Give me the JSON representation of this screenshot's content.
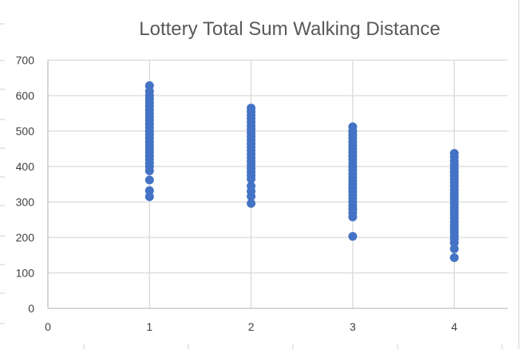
{
  "chart_data": {
    "type": "scatter",
    "title": "Lottery Total Sum Walking Distance",
    "xlabel": "",
    "ylabel": "",
    "xlim": [
      0,
      4.55
    ],
    "ylim": [
      0,
      700
    ],
    "xticks": [
      0,
      1,
      2,
      3,
      4
    ],
    "yticks": [
      0,
      100,
      200,
      300,
      400,
      500,
      600,
      700
    ],
    "grid": "both",
    "legend": "none",
    "marker_color": "#4472C4",
    "series": [
      {
        "values": [
          {
            "x": 1,
            "y": 315
          },
          {
            "x": 1,
            "y": 332
          },
          {
            "x": 1,
            "y": 362
          },
          {
            "x": 1,
            "y": 388
          },
          {
            "x": 1,
            "y": 400
          },
          {
            "x": 1,
            "y": 410
          },
          {
            "x": 1,
            "y": 420
          },
          {
            "x": 1,
            "y": 430
          },
          {
            "x": 1,
            "y": 440
          },
          {
            "x": 1,
            "y": 450
          },
          {
            "x": 1,
            "y": 460
          },
          {
            "x": 1,
            "y": 470
          },
          {
            "x": 1,
            "y": 480
          },
          {
            "x": 1,
            "y": 490
          },
          {
            "x": 1,
            "y": 500
          },
          {
            "x": 1,
            "y": 510
          },
          {
            "x": 1,
            "y": 520
          },
          {
            "x": 1,
            "y": 530
          },
          {
            "x": 1,
            "y": 540
          },
          {
            "x": 1,
            "y": 550
          },
          {
            "x": 1,
            "y": 560
          },
          {
            "x": 1,
            "y": 570
          },
          {
            "x": 1,
            "y": 580
          },
          {
            "x": 1,
            "y": 590
          },
          {
            "x": 1,
            "y": 600
          },
          {
            "x": 1,
            "y": 612
          },
          {
            "x": 1,
            "y": 628
          },
          {
            "x": 2,
            "y": 296
          },
          {
            "x": 2,
            "y": 316
          },
          {
            "x": 2,
            "y": 330
          },
          {
            "x": 2,
            "y": 345
          },
          {
            "x": 2,
            "y": 365
          },
          {
            "x": 2,
            "y": 375
          },
          {
            "x": 2,
            "y": 385
          },
          {
            "x": 2,
            "y": 395
          },
          {
            "x": 2,
            "y": 405
          },
          {
            "x": 2,
            "y": 415
          },
          {
            "x": 2,
            "y": 425
          },
          {
            "x": 2,
            "y": 435
          },
          {
            "x": 2,
            "y": 445
          },
          {
            "x": 2,
            "y": 455
          },
          {
            "x": 2,
            "y": 465
          },
          {
            "x": 2,
            "y": 475
          },
          {
            "x": 2,
            "y": 485
          },
          {
            "x": 2,
            "y": 495
          },
          {
            "x": 2,
            "y": 505
          },
          {
            "x": 2,
            "y": 515
          },
          {
            "x": 2,
            "y": 525
          },
          {
            "x": 2,
            "y": 535
          },
          {
            "x": 2,
            "y": 545
          },
          {
            "x": 2,
            "y": 555
          },
          {
            "x": 2,
            "y": 565
          },
          {
            "x": 3,
            "y": 203
          },
          {
            "x": 3,
            "y": 258
          },
          {
            "x": 3,
            "y": 270
          },
          {
            "x": 3,
            "y": 280
          },
          {
            "x": 3,
            "y": 290
          },
          {
            "x": 3,
            "y": 300
          },
          {
            "x": 3,
            "y": 310
          },
          {
            "x": 3,
            "y": 320
          },
          {
            "x": 3,
            "y": 330
          },
          {
            "x": 3,
            "y": 340
          },
          {
            "x": 3,
            "y": 350
          },
          {
            "x": 3,
            "y": 360
          },
          {
            "x": 3,
            "y": 370
          },
          {
            "x": 3,
            "y": 380
          },
          {
            "x": 3,
            "y": 390
          },
          {
            "x": 3,
            "y": 400
          },
          {
            "x": 3,
            "y": 410
          },
          {
            "x": 3,
            "y": 420
          },
          {
            "x": 3,
            "y": 430
          },
          {
            "x": 3,
            "y": 440
          },
          {
            "x": 3,
            "y": 450
          },
          {
            "x": 3,
            "y": 460
          },
          {
            "x": 3,
            "y": 470
          },
          {
            "x": 3,
            "y": 480
          },
          {
            "x": 3,
            "y": 490
          },
          {
            "x": 3,
            "y": 500
          },
          {
            "x": 3,
            "y": 512
          },
          {
            "x": 4,
            "y": 143
          },
          {
            "x": 4,
            "y": 168
          },
          {
            "x": 4,
            "y": 185
          },
          {
            "x": 4,
            "y": 195
          },
          {
            "x": 4,
            "y": 205
          },
          {
            "x": 4,
            "y": 215
          },
          {
            "x": 4,
            "y": 225
          },
          {
            "x": 4,
            "y": 235
          },
          {
            "x": 4,
            "y": 245
          },
          {
            "x": 4,
            "y": 255
          },
          {
            "x": 4,
            "y": 265
          },
          {
            "x": 4,
            "y": 275
          },
          {
            "x": 4,
            "y": 285
          },
          {
            "x": 4,
            "y": 295
          },
          {
            "x": 4,
            "y": 305
          },
          {
            "x": 4,
            "y": 315
          },
          {
            "x": 4,
            "y": 325
          },
          {
            "x": 4,
            "y": 335
          },
          {
            "x": 4,
            "y": 345
          },
          {
            "x": 4,
            "y": 355
          },
          {
            "x": 4,
            "y": 365
          },
          {
            "x": 4,
            "y": 375
          },
          {
            "x": 4,
            "y": 385
          },
          {
            "x": 4,
            "y": 395
          },
          {
            "x": 4,
            "y": 405
          },
          {
            "x": 4,
            "y": 415
          },
          {
            "x": 4,
            "y": 427
          },
          {
            "x": 4,
            "y": 437
          }
        ]
      }
    ]
  }
}
